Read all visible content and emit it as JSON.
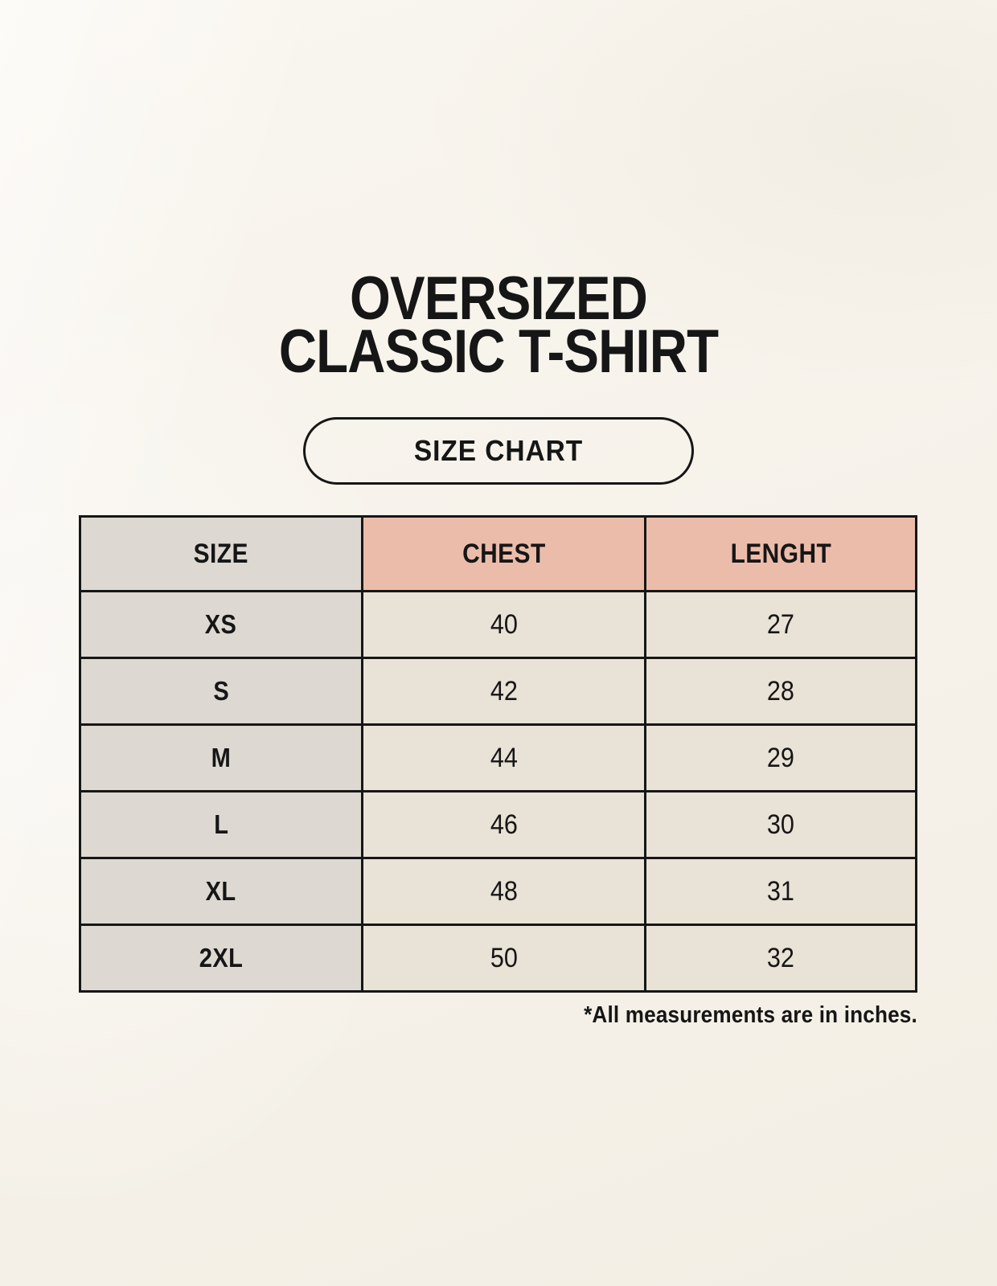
{
  "title": {
    "line1": "OVERSIZED",
    "line2": "CLASSIC T-SHIRT"
  },
  "size_chart_button": {
    "label": "SIZE CHART"
  },
  "size_table": {
    "headers": {
      "size": "SIZE",
      "chest": "CHEST",
      "length": "LENGHT"
    },
    "rows": [
      {
        "size": "XS",
        "chest": "40",
        "length": "27"
      },
      {
        "size": "S",
        "chest": "42",
        "length": "28"
      },
      {
        "size": "M",
        "chest": "44",
        "length": "29"
      },
      {
        "size": "L",
        "chest": "46",
        "length": "30"
      },
      {
        "size": "XL",
        "chest": "48",
        "length": "31"
      },
      {
        "size": "2XL",
        "chest": "50",
        "length": "32"
      }
    ],
    "units_note": "*All measurements are in inches."
  },
  "colors": {
    "background": "#f7f4ec",
    "table_border": "#161616",
    "header_size_bg": "#ded8d2",
    "header_measurement_bg": "#ecbcab",
    "size_column_bg": "#ded8d2",
    "value_cell_bg": "#e9e2d6",
    "text": "#161616"
  }
}
